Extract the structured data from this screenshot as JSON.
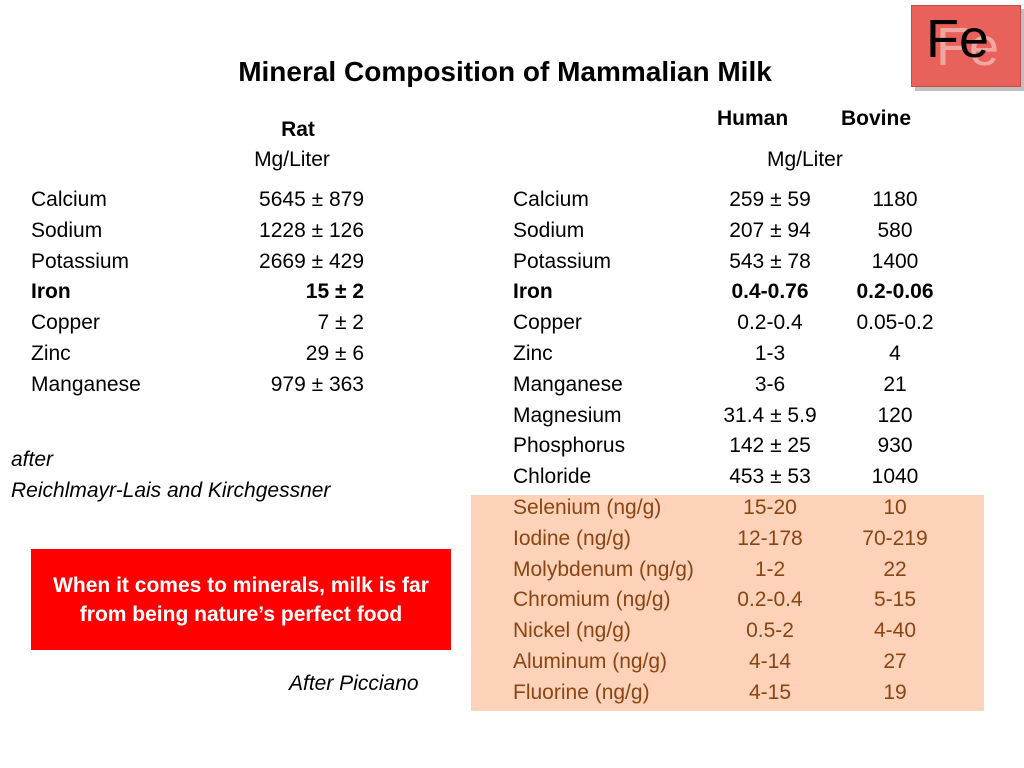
{
  "logo": {
    "symbol": "Fe"
  },
  "title": "Mineral Composition of Mammalian Milk",
  "rat": {
    "header": "Rat",
    "unit": "Mg/Liter",
    "rows": [
      {
        "name": "Calcium",
        "value": "5645 ± 879",
        "bold": false
      },
      {
        "name": "Sodium",
        "value": "1228 ± 126",
        "bold": false
      },
      {
        "name": "Potassium",
        "value": "2669 ± 429",
        "bold": false
      },
      {
        "name": "Iron",
        "value": "15 ± 2",
        "bold": true
      },
      {
        "name": "Copper",
        "value": "7 ± 2",
        "bold": false
      },
      {
        "name": "Zinc",
        "value": "29 ± 6",
        "bold": false
      },
      {
        "name": "Manganese",
        "value": "979 ± 363",
        "bold": false
      }
    ]
  },
  "human_bovine": {
    "header_human": "Human",
    "header_bovine": "Bovine",
    "unit": "Mg/Liter",
    "rows": [
      {
        "name": "Calcium",
        "human": "259 ± 59",
        "bovine": "1180",
        "bold": false,
        "highlight": false
      },
      {
        "name": "Sodium",
        "human": "207 ± 94",
        "bovine": "580",
        "bold": false,
        "highlight": false
      },
      {
        "name": "Potassium",
        "human": "543 ± 78",
        "bovine": "1400",
        "bold": false,
        "highlight": false
      },
      {
        "name": "Iron",
        "human": "0.4-0.76",
        "bovine": "0.2-0.06",
        "bold": true,
        "highlight": false
      },
      {
        "name": "Copper",
        "human": "0.2-0.4",
        "bovine": "0.05-0.2",
        "bold": false,
        "highlight": false
      },
      {
        "name": "Zinc",
        "human": "1-3",
        "bovine": "4",
        "bold": false,
        "highlight": false
      },
      {
        "name": "Manganese",
        "human": "3-6",
        "bovine": "21",
        "bold": false,
        "highlight": false
      },
      {
        "name": "Magnesium",
        "human": "31.4 ± 5.9",
        "bovine": "120",
        "bold": false,
        "highlight": false
      },
      {
        "name": "Phosphorus",
        "human": "142 ± 25",
        "bovine": "930",
        "bold": false,
        "highlight": false
      },
      {
        "name": "Chloride",
        "human": "453 ± 53",
        "bovine": "1040",
        "bold": false,
        "highlight": false
      },
      {
        "name": "Selenium (ng/g)",
        "human": "15-20",
        "bovine": "10",
        "bold": false,
        "highlight": true
      },
      {
        "name": "Iodine (ng/g)",
        "human": "12-178",
        "bovine": "70-219",
        "bold": false,
        "highlight": true
      },
      {
        "name": "Molybdenum (ng/g)",
        "human": "1-2",
        "bovine": "22",
        "bold": false,
        "highlight": true
      },
      {
        "name": "Chromium (ng/g)",
        "human": "0.2-0.4",
        "bovine": "5-15",
        "bold": false,
        "highlight": true
      },
      {
        "name": "Nickel (ng/g)",
        "human": "0.5-2",
        "bovine": "4-40",
        "bold": false,
        "highlight": true
      },
      {
        "name": "Aluminum (ng/g)",
        "human": "4-14",
        "bovine": "27",
        "bold": false,
        "highlight": true
      },
      {
        "name": "Fluorine (ng/g)",
        "human": "4-15",
        "bovine": "19",
        "bold": false,
        "highlight": true
      }
    ]
  },
  "citation_rat": {
    "line1": "after",
    "line2": "Reichlmayr-Lais and Kirchgessner"
  },
  "callout": "When it comes to minerals, milk is  far from being nature’s perfect food",
  "citation_human": "After Picciano",
  "colors": {
    "callout_bg": "#ff0000",
    "highlight_bg": "#fdd2b8",
    "highlight_text": "#8b4513",
    "logo_bg": "#e8615a"
  }
}
